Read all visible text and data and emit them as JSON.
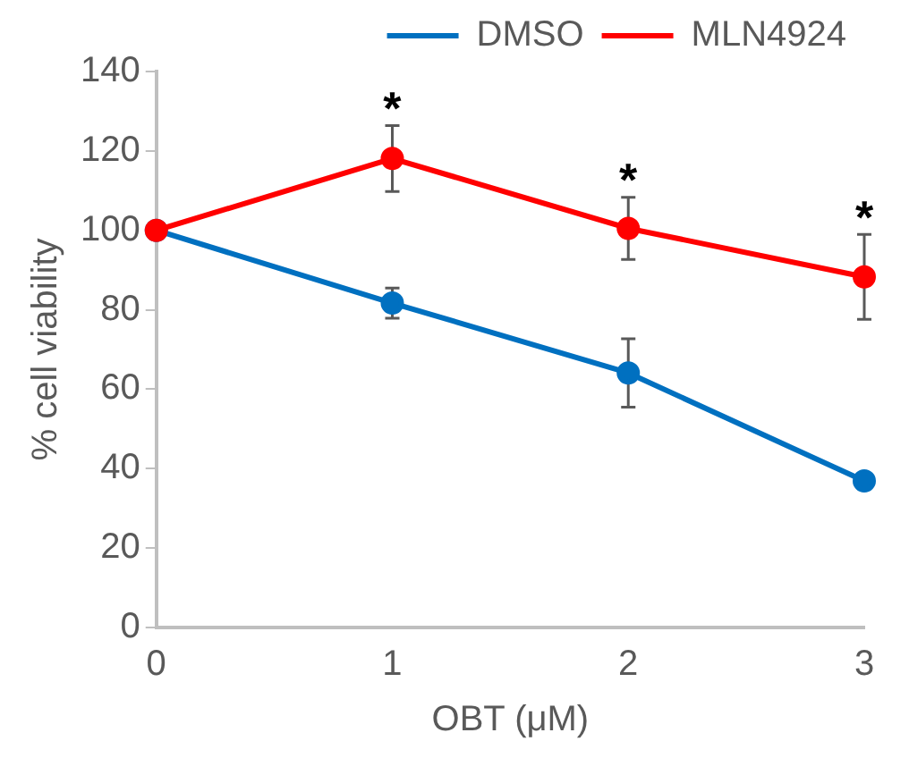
{
  "chart_data": {
    "type": "line",
    "xlabel": "OBT (μM)",
    "ylabel": "% cell viability",
    "categories": [
      "0",
      "1",
      "2",
      "3"
    ],
    "series": [
      {
        "name": "DMSO",
        "color": "#0070c0",
        "values": [
          100,
          81.7,
          64.1,
          36.9
        ],
        "errors": [
          null,
          3.8,
          8.6,
          null
        ]
      },
      {
        "name": "MLN4924",
        "color": "#ff0000",
        "values": [
          100,
          118.1,
          100.5,
          88.3
        ],
        "errors": [
          null,
          8.3,
          7.8,
          10.7
        ]
      }
    ],
    "ylim": [
      0,
      140
    ],
    "yticks": [
      0,
      20,
      40,
      60,
      80,
      100,
      120,
      140
    ],
    "annotations": [
      "*",
      "*",
      "*"
    ],
    "grid": false,
    "legend": "top",
    "marker": "circle",
    "line_style": "solid"
  }
}
